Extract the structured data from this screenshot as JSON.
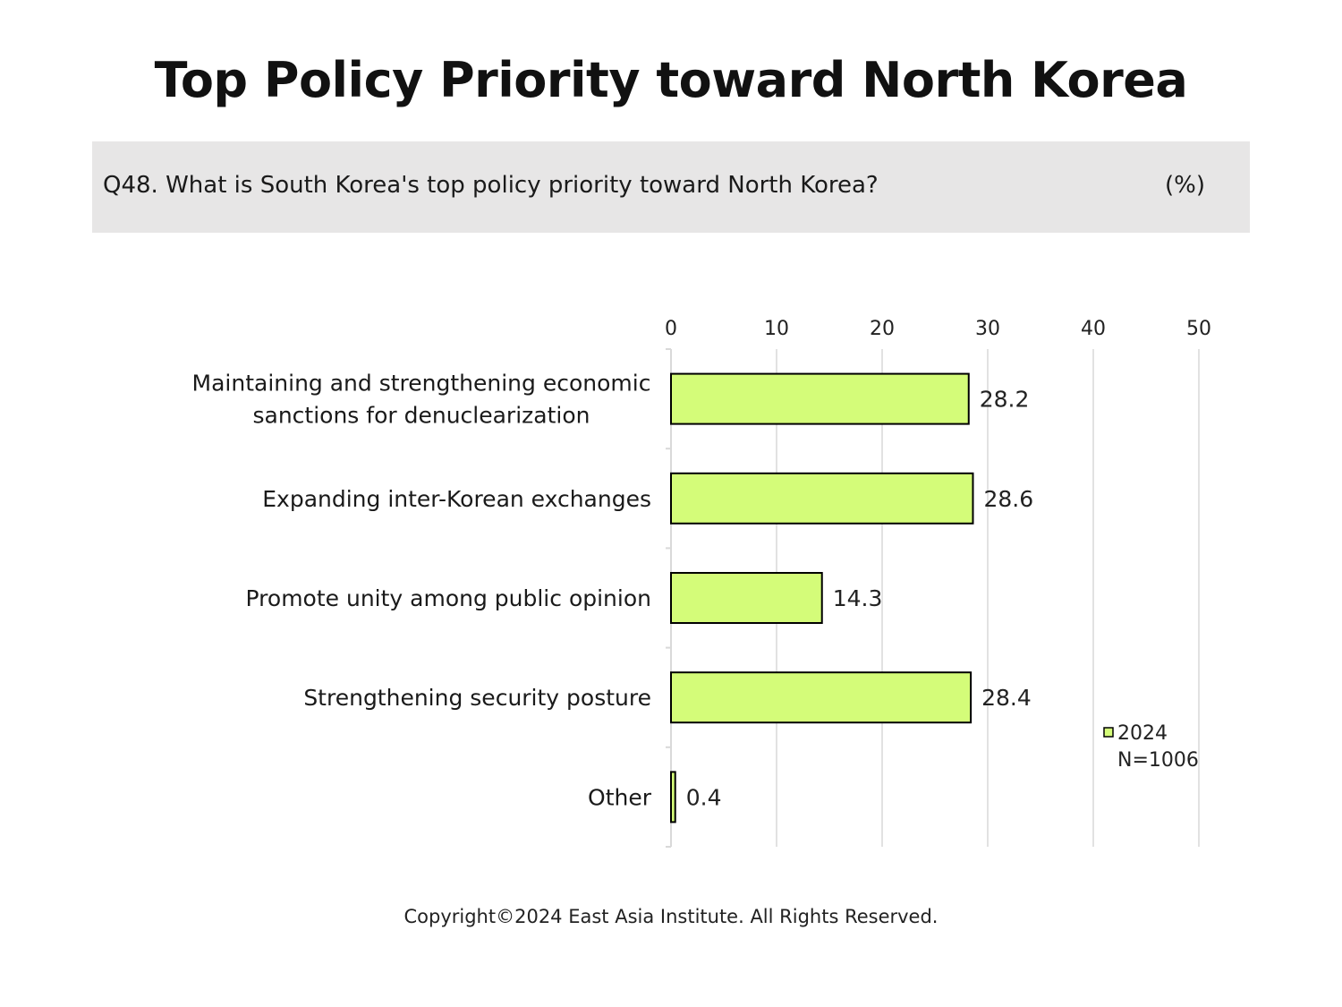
{
  "title": "Top Policy Priority toward North Korea",
  "question": "Q48. What is South Korea's top policy priority toward North Korea?",
  "unit": "(%)",
  "copyright": "Copyright©2024 East Asia Institute. All Rights Reserved.",
  "colors": {
    "bar_fill": "#d4fc79",
    "bar_stroke": "#000000",
    "grid": "#d9d9d9",
    "question_bg": "#e7e6e6"
  },
  "chart_data": {
    "type": "bar",
    "orientation": "horizontal",
    "categories": [
      [
        "Maintaining and strengthening economic",
        "sanctions for denuclearization"
      ],
      [
        "Expanding inter-Korean exchanges"
      ],
      [
        "Promote unity among public opinion"
      ],
      [
        "Strengthening security posture"
      ],
      [
        "Other"
      ]
    ],
    "series": [
      {
        "name": "2024",
        "values": [
          28.2,
          28.6,
          14.3,
          28.4,
          0.4
        ]
      }
    ],
    "xlim": [
      0,
      50
    ],
    "ticks": [
      0,
      10,
      20,
      30,
      40,
      50
    ],
    "x_axis_position": "top",
    "grid": true,
    "legend": {
      "position": "right",
      "entries": [
        "2024"
      ],
      "note": "N=1006"
    }
  }
}
